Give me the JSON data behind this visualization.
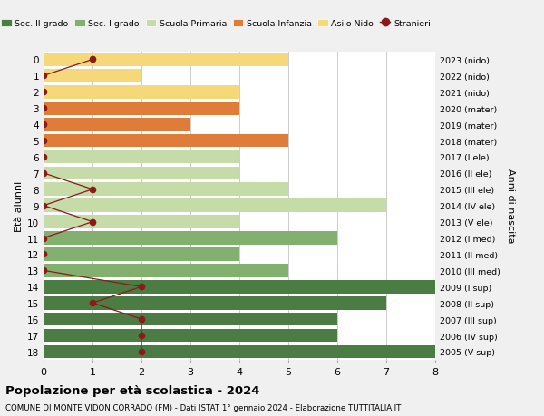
{
  "ages": [
    18,
    17,
    16,
    15,
    14,
    13,
    12,
    11,
    10,
    9,
    8,
    7,
    6,
    5,
    4,
    3,
    2,
    1,
    0
  ],
  "years": [
    "2005 (V sup)",
    "2006 (IV sup)",
    "2007 (III sup)",
    "2008 (II sup)",
    "2009 (I sup)",
    "2010 (III med)",
    "2011 (II med)",
    "2012 (I med)",
    "2013 (V ele)",
    "2014 (IV ele)",
    "2015 (III ele)",
    "2016 (II ele)",
    "2017 (I ele)",
    "2018 (mater)",
    "2019 (mater)",
    "2020 (mater)",
    "2021 (nido)",
    "2022 (nido)",
    "2023 (nido)"
  ],
  "bar_values": [
    8,
    6,
    6,
    7,
    8,
    5,
    4,
    6,
    4,
    7,
    5,
    4,
    4,
    5,
    3,
    4,
    4,
    2,
    5
  ],
  "bar_colors": [
    "#4a7c44",
    "#4a7c44",
    "#4a7c44",
    "#4a7c44",
    "#4a7c44",
    "#82b06e",
    "#82b06e",
    "#82b06e",
    "#c5dba8",
    "#c5dba8",
    "#c5dba8",
    "#c5dba8",
    "#c5dba8",
    "#e07c3a",
    "#e07c3a",
    "#e07c3a",
    "#f5d87a",
    "#f5d87a",
    "#f5d87a"
  ],
  "stranieri_values": [
    2,
    2,
    2,
    1,
    2,
    0,
    0,
    0,
    1,
    0,
    1,
    0,
    0,
    0,
    0,
    0,
    0,
    0,
    1
  ],
  "stranieri_color": "#8b1a1a",
  "legend_labels": [
    "Sec. II grado",
    "Sec. I grado",
    "Scuola Primaria",
    "Scuola Infanzia",
    "Asilo Nido",
    "Stranieri"
  ],
  "legend_colors": [
    "#4a7c44",
    "#82b06e",
    "#c5dba8",
    "#e07c3a",
    "#f5d87a",
    "#8b1a1a"
  ],
  "ylabel_left": "Età alunni",
  "ylabel_right": "Anni di nascita",
  "title": "Popolazione per età scolastica - 2024",
  "subtitle": "COMUNE DI MONTE VIDON CORRADO (FM) - Dati ISTAT 1° gennaio 2024 - Elaborazione TUTTITALIA.IT",
  "xlim": [
    0,
    8
  ],
  "background_color": "#f0f0f0",
  "bar_background": "#ffffff",
  "grid_color": "#cccccc"
}
